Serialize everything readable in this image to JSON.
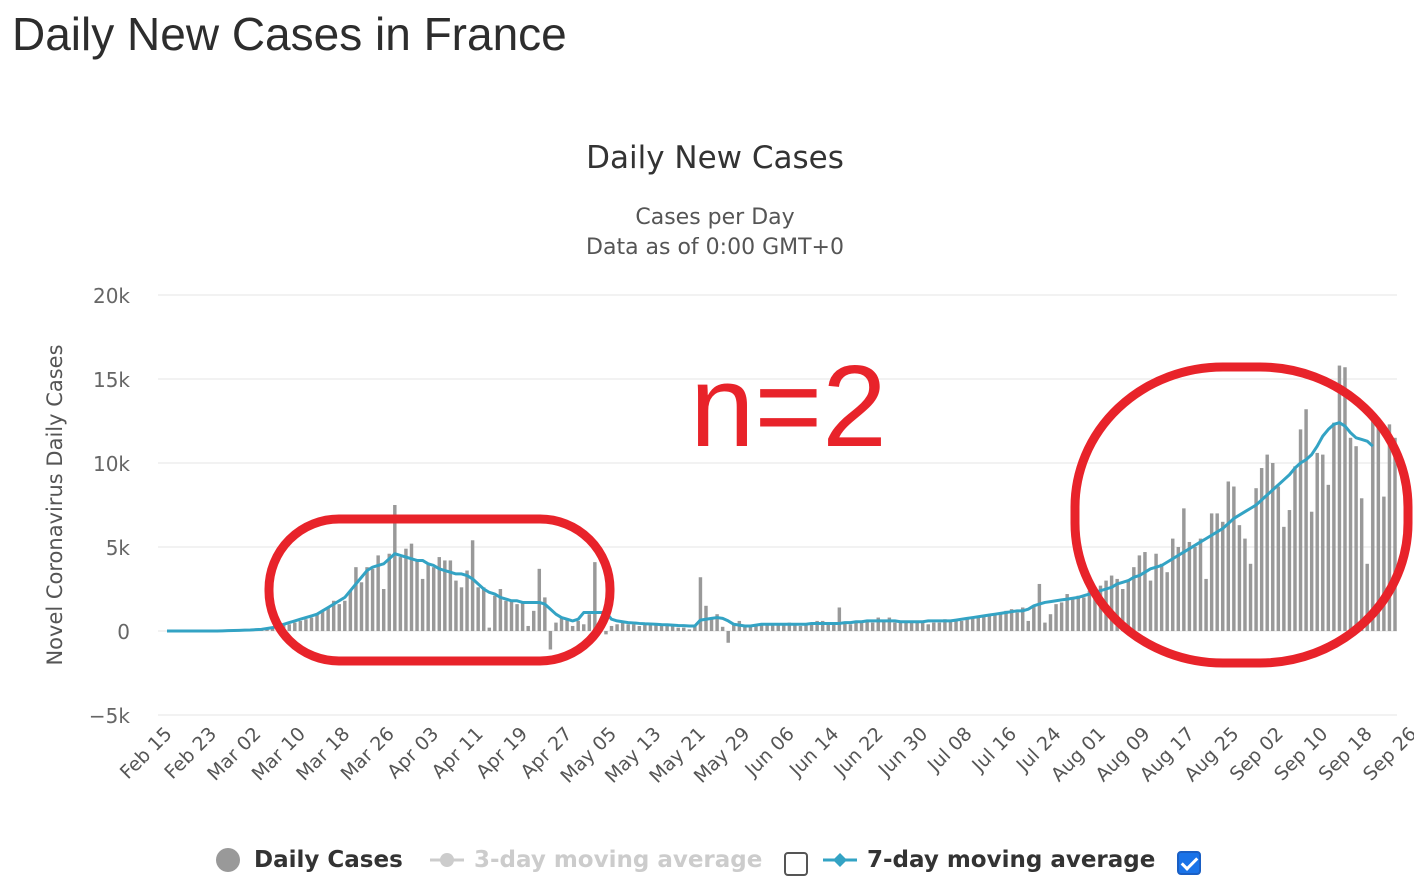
{
  "page": {
    "title": "Daily New Cases in France"
  },
  "annotation": {
    "text": "n=2",
    "color": "#e8232a"
  },
  "legend": {
    "items": [
      {
        "label": "Daily Cases",
        "color": "#999999",
        "enabled": true
      },
      {
        "label": "3-day moving average",
        "color": "#cccccc",
        "enabled": false
      },
      {
        "label": "7-day moving average",
        "color": "#33a3c4",
        "enabled": true
      }
    ],
    "checkbox_3day_checked": false,
    "checkbox_7day_checked": true
  },
  "chart_data": {
    "type": "bar",
    "title": "Daily New Cases",
    "subtitle": "Cases per Day",
    "subtitle2": "Data as of 0:00 GMT+0",
    "xlabel": "",
    "ylabel": "Novel Coronavirus Daily Cases",
    "ylim": [
      -5000,
      20000
    ],
    "yticks": [
      -5000,
      0,
      5000,
      10000,
      15000,
      20000
    ],
    "ytick_labels": [
      "−5k",
      "0",
      "5k",
      "10k",
      "15k",
      "20k"
    ],
    "grid": true,
    "legend_position": "bottom",
    "x_start": "Feb 15",
    "x_tick_labels": [
      "Feb 15",
      "Feb 23",
      "Mar 02",
      "Mar 10",
      "Mar 18",
      "Mar 26",
      "Apr 03",
      "Apr 11",
      "Apr 19",
      "Apr 27",
      "May 05",
      "May 13",
      "May 21",
      "May 29",
      "Jun 06",
      "Jun 14",
      "Jun 22",
      "Jun 30",
      "Jul 08",
      "Jul 16",
      "Jul 24",
      "Aug 01",
      "Aug 09",
      "Aug 17",
      "Aug 25",
      "Sep 02",
      "Sep 10",
      "Sep 18",
      "Sep 26"
    ],
    "series": [
      {
        "name": "Daily Cases",
        "color": "#999999",
        "values": [
          0,
          0,
          0,
          0,
          0,
          0,
          0,
          0,
          0,
          0,
          10,
          20,
          30,
          50,
          50,
          60,
          80,
          100,
          150,
          200,
          300,
          400,
          400,
          500,
          600,
          700,
          800,
          1000,
          1200,
          1400,
          1800,
          1600,
          1800,
          2400,
          3800,
          2900,
          3800,
          3700,
          4500,
          2500,
          4600,
          7500,
          4400,
          4900,
          5200,
          4200,
          3100,
          4000,
          3800,
          4400,
          4200,
          4200,
          3000,
          2600,
          3600,
          5400,
          2600,
          2600,
          200,
          2100,
          2500,
          1800,
          1800,
          1600,
          1700,
          300,
          1200,
          3700,
          2000,
          -1100,
          500,
          800,
          700,
          300,
          600,
          400,
          1000,
          4100,
          500,
          -200,
          300,
          400,
          600,
          400,
          400,
          300,
          400,
          350,
          400,
          400,
          300,
          300,
          200,
          200,
          100,
          300,
          3200,
          1500,
          700,
          1000,
          250,
          -700,
          400,
          600,
          300,
          300,
          400,
          400,
          400,
          400,
          400,
          400,
          500,
          400,
          300,
          400,
          500,
          600,
          600,
          400,
          500,
          1400,
          500,
          400,
          600,
          600,
          600,
          500,
          800,
          600,
          800,
          500,
          500,
          600,
          600,
          600,
          500,
          400,
          500,
          500,
          700,
          600,
          600,
          600,
          800,
          800,
          800,
          900,
          1000,
          1000,
          1100,
          1200,
          1300,
          1100,
          1400,
          600,
          1500,
          2800,
          500,
          1000,
          1600,
          1700,
          2200,
          1900,
          2100,
          2000,
          2400,
          2500,
          2700,
          3000,
          3300,
          3100,
          2500,
          3000,
          3800,
          4500,
          4700,
          3000,
          4600,
          4000,
          3500,
          5500,
          5000,
          7300,
          5300,
          5000,
          5500,
          3100,
          7000,
          7000,
          6500,
          8900,
          8600,
          6300,
          5500,
          4000,
          8500,
          9700,
          10500,
          10000,
          8600,
          6200,
          7200,
          9800,
          12000,
          13200,
          7100,
          10600,
          10500,
          8700,
          12400,
          15800,
          15700,
          11500,
          11000,
          7900,
          4000,
          12600,
          12700,
          8000,
          12300,
          11500
        ]
      },
      {
        "name": "7-day moving average",
        "color": "#33a3c4",
        "values": [
          0,
          0,
          0,
          0,
          0,
          0,
          0,
          0,
          0,
          0,
          10,
          20,
          30,
          40,
          50,
          60,
          80,
          100,
          150,
          200,
          300,
          400,
          500,
          600,
          700,
          800,
          900,
          1000,
          1200,
          1400,
          1600,
          1800,
          2000,
          2400,
          2800,
          3200,
          3600,
          3800,
          3900,
          4000,
          4300,
          4600,
          4500,
          4400,
          4300,
          4200,
          4200,
          4000,
          3900,
          3700,
          3600,
          3500,
          3400,
          3400,
          3300,
          3100,
          2800,
          2500,
          2300,
          2200,
          2000,
          1900,
          1800,
          1800,
          1700,
          1700,
          1700,
          1700,
          1600,
          1300,
          1000,
          800,
          700,
          600,
          700,
          1100,
          1100,
          1100,
          1100,
          1100,
          700,
          600,
          550,
          500,
          480,
          450,
          430,
          420,
          400,
          380,
          370,
          350,
          330,
          320,
          300,
          300,
          650,
          700,
          750,
          800,
          750,
          600,
          400,
          350,
          300,
          300,
          350,
          400,
          400,
          400,
          400,
          400,
          400,
          400,
          400,
          400,
          450,
          450,
          450,
          450,
          450,
          450,
          500,
          500,
          550,
          550,
          600,
          600,
          600,
          600,
          600,
          600,
          550,
          550,
          550,
          550,
          550,
          600,
          600,
          600,
          600,
          600,
          650,
          700,
          750,
          800,
          850,
          900,
          950,
          1000,
          1050,
          1100,
          1150,
          1200,
          1200,
          1300,
          1500,
          1600,
          1700,
          1750,
          1800,
          1850,
          1900,
          1950,
          2000,
          2100,
          2200,
          2300,
          2400,
          2500,
          2600,
          2800,
          2900,
          3000,
          3200,
          3300,
          3500,
          3700,
          3800,
          3900,
          4100,
          4300,
          4500,
          4700,
          4900,
          5100,
          5300,
          5500,
          5700,
          5900,
          6100,
          6400,
          6700,
          6900,
          7100,
          7300,
          7500,
          7800,
          8100,
          8400,
          8700,
          9000,
          9300,
          9700,
          10000,
          10200,
          10500,
          11000,
          11600,
          12000,
          12300,
          12400,
          12200,
          11800,
          11500,
          11400,
          11300,
          11000
        ]
      }
    ]
  }
}
